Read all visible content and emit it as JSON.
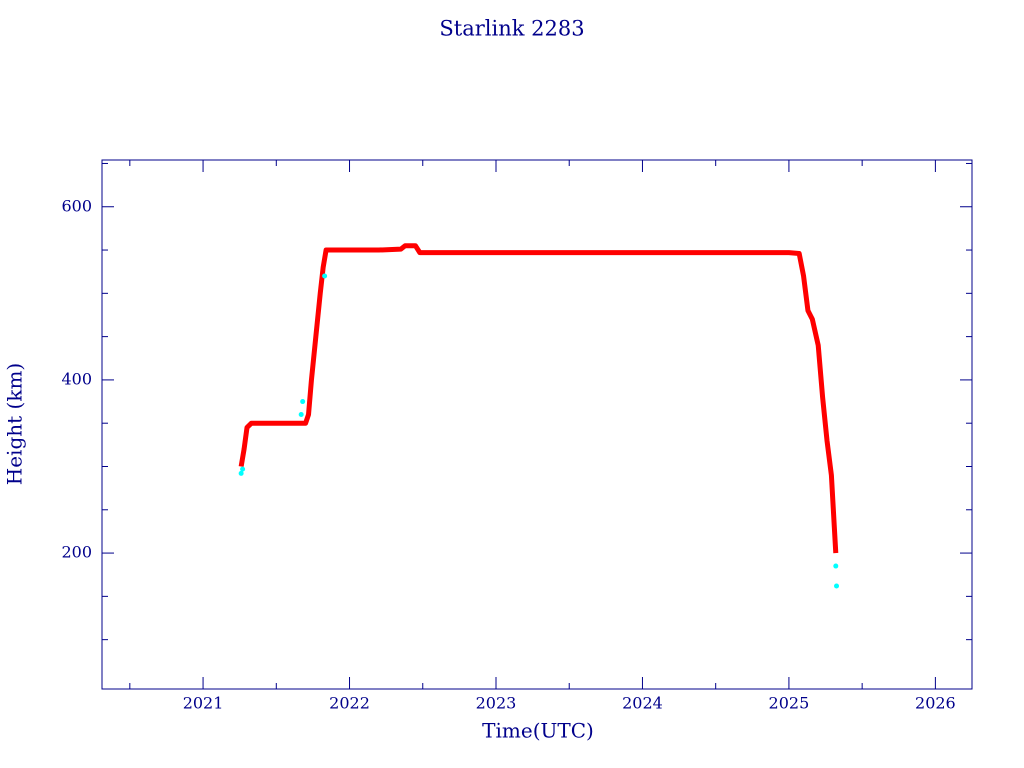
{
  "chart_data": {
    "type": "scatter",
    "title": "Starlink 2283",
    "xlabel": "Time(UTC)",
    "ylabel": "Height (km)",
    "xlim": [
      2020.31,
      2026.25
    ],
    "ylim": [
      43,
      654
    ],
    "xticks": [
      2021,
      2022,
      2023,
      2024,
      2025,
      2026
    ],
    "xminorticks": [
      2020.5,
      2021.5,
      2022.5,
      2023.5,
      2024.5,
      2025.5
    ],
    "yticks": [
      200,
      400,
      600
    ],
    "yminorticks": [
      100,
      150,
      250,
      300,
      350,
      450,
      500,
      550,
      650
    ],
    "axis_color": "#00008b",
    "series": [
      {
        "color": "#ff0000",
        "x": [
          2021.26,
          2021.28,
          2021.3,
          2021.33,
          2021.5,
          2021.7,
          2021.72,
          2021.74,
          2021.77,
          2021.8,
          2021.82,
          2021.84,
          2022,
          2022.2,
          2022.35,
          2022.38,
          2022.45,
          2022.48,
          2022.6,
          2023,
          2024,
          2025,
          2025.07,
          2025.1,
          2025.13,
          2025.16,
          2025.2,
          2025.23,
          2025.26,
          2025.29,
          2025.3,
          2025.31,
          2025.32
        ],
        "values": [
          300,
          320,
          345,
          350,
          350,
          350,
          360,
          400,
          450,
          500,
          530,
          550,
          550,
          550,
          551,
          555,
          555,
          547,
          547,
          547,
          547,
          547,
          546,
          520,
          480,
          470,
          440,
          380,
          330,
          290,
          260,
          230,
          200
        ]
      },
      {
        "color": "#00ffff",
        "x": [
          2021.26,
          2021.27,
          2021.67,
          2021.68,
          2021.83,
          2025.32,
          2025.325
        ],
        "values": [
          292,
          297,
          360,
          375,
          520,
          185,
          162
        ]
      }
    ]
  }
}
